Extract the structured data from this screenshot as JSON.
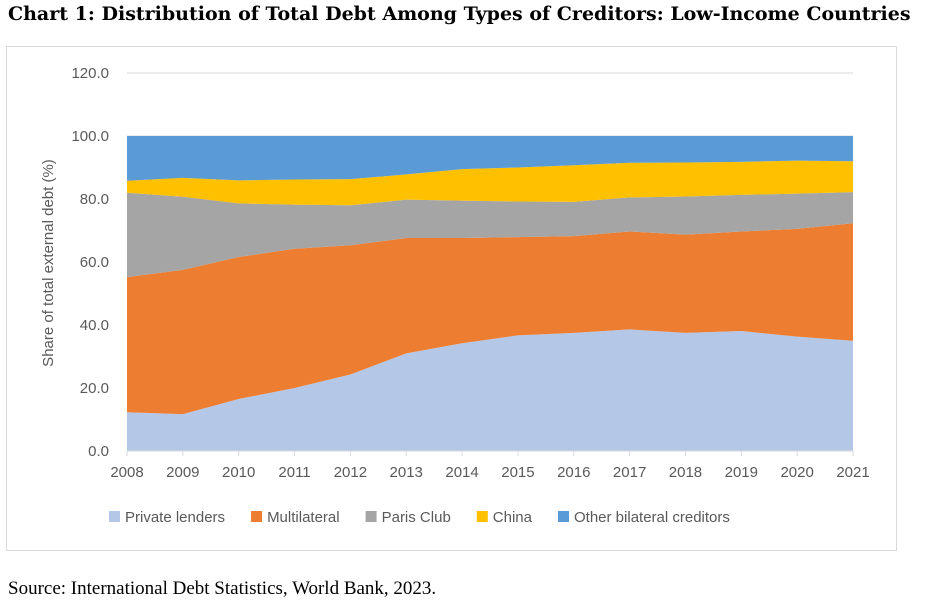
{
  "page": {
    "title": "Chart 1: Distribution of Total Debt Among Types of Creditors: Low-Income Countries",
    "source": "Source: International Debt Statistics, World Bank, 2023."
  },
  "chart_data": {
    "type": "area",
    "stacked": true,
    "x": [
      "2008",
      "2009",
      "2010",
      "2011",
      "2012",
      "2013",
      "2014",
      "2015",
      "2016",
      "2017",
      "2018",
      "2019",
      "2020",
      "2021"
    ],
    "ylabel": "Share of total external debt (%)",
    "ylim": [
      0,
      120
    ],
    "yticks": [
      "0.0",
      "20.0",
      "40.0",
      "60.0",
      "80.0",
      "100.0",
      "120.0"
    ],
    "grid": true,
    "legend": "bottom",
    "series": [
      {
        "name": "Private lenders",
        "color": "#b4c7e7",
        "values": [
          12.3,
          11.7,
          16.5,
          20.0,
          24.3,
          31.0,
          34.2,
          36.7,
          37.5,
          38.6,
          37.5,
          38.1,
          36.3,
          35.0
        ]
      },
      {
        "name": "Multilateral",
        "color": "#ed7d31",
        "values": [
          42.9,
          45.8,
          45.1,
          44.2,
          41.0,
          36.6,
          33.4,
          31.2,
          30.7,
          31.1,
          31.2,
          31.6,
          34.2,
          37.3
        ]
      },
      {
        "name": "Paris Club",
        "color": "#a5a5a5",
        "values": [
          26.8,
          23.2,
          17.0,
          14.0,
          12.7,
          12.2,
          11.9,
          11.3,
          10.9,
          10.8,
          12.1,
          11.6,
          11.2,
          9.9
        ]
      },
      {
        "name": "China",
        "color": "#ffc000",
        "values": [
          3.8,
          6.0,
          7.3,
          8.0,
          8.3,
          8.0,
          10.0,
          10.8,
          11.6,
          11.0,
          10.8,
          10.5,
          10.5,
          9.8
        ]
      },
      {
        "name": "Other bilateral creditors",
        "color": "#5b9bd5",
        "values": [
          14.2,
          13.3,
          14.1,
          13.8,
          13.7,
          12.2,
          10.5,
          10.0,
          9.3,
          8.5,
          8.4,
          8.2,
          7.8,
          8.0
        ]
      }
    ]
  }
}
